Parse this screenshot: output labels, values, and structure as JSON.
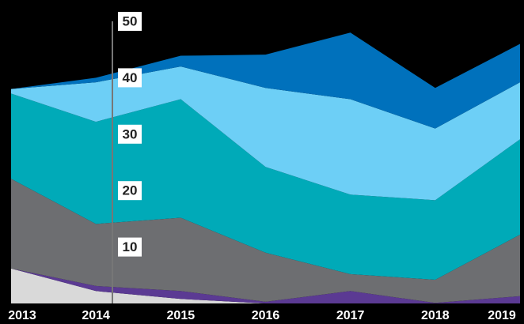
{
  "chart_data": {
    "type": "stacked-area",
    "categories": [
      "2013",
      "2014",
      "2015",
      "2016",
      "2017",
      "2018",
      "2019"
    ],
    "series": [
      {
        "color": "#d9d9d9",
        "values": [
          6.2,
          2.2,
          0.8,
          0,
          0,
          0,
          0
        ]
      },
      {
        "color": "#5b3a93",
        "values": [
          0,
          0.9,
          1.4,
          0.3,
          2.2,
          0.1,
          1.3
        ]
      },
      {
        "color": "#6d6e71",
        "values": [
          15.9,
          11.0,
          13.0,
          8.7,
          3.0,
          4.1,
          10.9
        ]
      },
      {
        "color": "#00aab8",
        "values": [
          15.1,
          18.1,
          21.0,
          15.2,
          14.1,
          14.1,
          16.9
        ]
      },
      {
        "color": "#6dcff6",
        "values": [
          0.8,
          7.0,
          5.8,
          14.0,
          16.9,
          12.7,
          10.1
        ]
      },
      {
        "color": "#0071bc",
        "values": [
          0,
          0.8,
          1.9,
          5.9,
          11.8,
          7.2,
          6.8
        ]
      }
    ],
    "ylim": [
      0,
      50
    ],
    "yticks": [
      10,
      20,
      30,
      40,
      50
    ]
  }
}
